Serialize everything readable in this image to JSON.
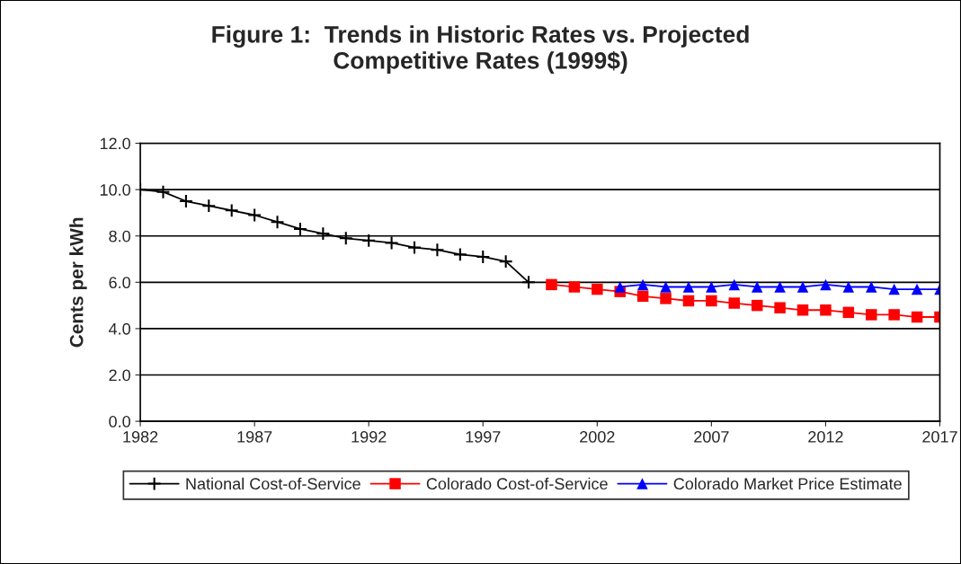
{
  "chart_data": {
    "type": "line",
    "title": "Figure 1:  Trends in Historic Rates vs. Projected\nCompetitive Rates (1999$)",
    "ylabel": "Cents per kWh",
    "xlim": [
      1982,
      2017
    ],
    "xticks": [
      1982,
      1987,
      1992,
      1997,
      2002,
      2007,
      2012,
      2017
    ],
    "ylim": [
      0,
      12
    ],
    "yticks": [
      {
        "value": 0,
        "label": "0.0"
      },
      {
        "value": 2,
        "label": "2.0"
      },
      {
        "value": 4,
        "label": "4.0"
      },
      {
        "value": 6,
        "label": "6.0"
      },
      {
        "value": 8,
        "label": "8.0"
      },
      {
        "value": 10,
        "label": "10.0"
      },
      {
        "value": 12,
        "label": "12.0"
      }
    ],
    "grid": "y",
    "legend": "bottom",
    "series": [
      {
        "name": "National Cost-of-Service",
        "color": "#000000",
        "marker": "cross",
        "x": [
          1982,
          1983,
          1984,
          1985,
          1986,
          1987,
          1988,
          1989,
          1990,
          1991,
          1992,
          1993,
          1994,
          1995,
          1996,
          1997,
          1998,
          1999
        ],
        "values": [
          10.0,
          9.9,
          9.5,
          9.3,
          9.1,
          8.9,
          8.6,
          8.3,
          8.1,
          7.9,
          7.8,
          7.7,
          7.5,
          7.4,
          7.2,
          7.1,
          6.9,
          6.0
        ]
      },
      {
        "name": "Colorado Cost-of-Service",
        "color": "#ff0000",
        "marker": "square",
        "x": [
          2000,
          2001,
          2002,
          2003,
          2004,
          2005,
          2006,
          2007,
          2008,
          2009,
          2010,
          2011,
          2012,
          2013,
          2014,
          2015,
          2016,
          2017
        ],
        "values": [
          5.9,
          5.8,
          5.7,
          5.6,
          5.4,
          5.3,
          5.2,
          5.2,
          5.1,
          5.0,
          4.9,
          4.8,
          4.8,
          4.7,
          4.6,
          4.6,
          4.5,
          4.5
        ]
      },
      {
        "name": "Colorado Market Price Estimate",
        "color": "#0000ff",
        "marker": "triangle",
        "x": [
          2003,
          2004,
          2005,
          2006,
          2007,
          2008,
          2009,
          2010,
          2011,
          2012,
          2013,
          2014,
          2015,
          2016,
          2017
        ],
        "values": [
          5.8,
          5.9,
          5.8,
          5.8,
          5.8,
          5.9,
          5.8,
          5.8,
          5.8,
          5.9,
          5.8,
          5.8,
          5.7,
          5.7,
          5.7
        ]
      }
    ]
  }
}
